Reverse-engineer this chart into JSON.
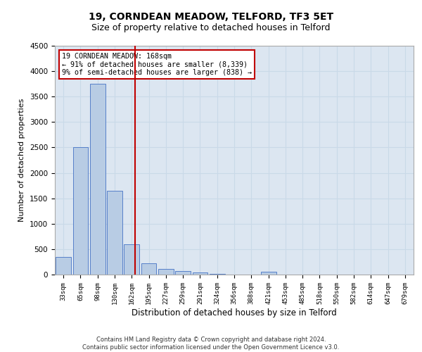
{
  "title": "19, CORNDEAN MEADOW, TELFORD, TF3 5ET",
  "subtitle": "Size of property relative to detached houses in Telford",
  "xlabel": "Distribution of detached houses by size in Telford",
  "ylabel": "Number of detached properties",
  "categories": [
    "33sqm",
    "65sqm",
    "98sqm",
    "130sqm",
    "162sqm",
    "195sqm",
    "227sqm",
    "259sqm",
    "291sqm",
    "324sqm",
    "356sqm",
    "388sqm",
    "421sqm",
    "453sqm",
    "485sqm",
    "518sqm",
    "550sqm",
    "582sqm",
    "614sqm",
    "647sqm",
    "679sqm"
  ],
  "values": [
    350,
    2500,
    3750,
    1650,
    600,
    225,
    110,
    65,
    35,
    12,
    5,
    2,
    50,
    2,
    1,
    1,
    0,
    0,
    0,
    0,
    0
  ],
  "bar_color": "#b8cce4",
  "bar_edge_color": "#4472c4",
  "vline_color": "#c00000",
  "annotation_text": "19 CORNDEAN MEADOW: 168sqm\n← 91% of detached houses are smaller (8,339)\n9% of semi-detached houses are larger (838) →",
  "annotation_box_color": "#ffffff",
  "annotation_box_edge": "#c00000",
  "ylim": [
    0,
    4500
  ],
  "yticks": [
    0,
    500,
    1000,
    1500,
    2000,
    2500,
    3000,
    3500,
    4000,
    4500
  ],
  "grid_color": "#c9d9e8",
  "background_color": "#dce6f1",
  "footer": "Contains HM Land Registry data © Crown copyright and database right 2024.\nContains public sector information licensed under the Open Government Licence v3.0.",
  "title_fontsize": 10,
  "subtitle_fontsize": 9,
  "xlabel_fontsize": 8.5,
  "ylabel_fontsize": 8
}
